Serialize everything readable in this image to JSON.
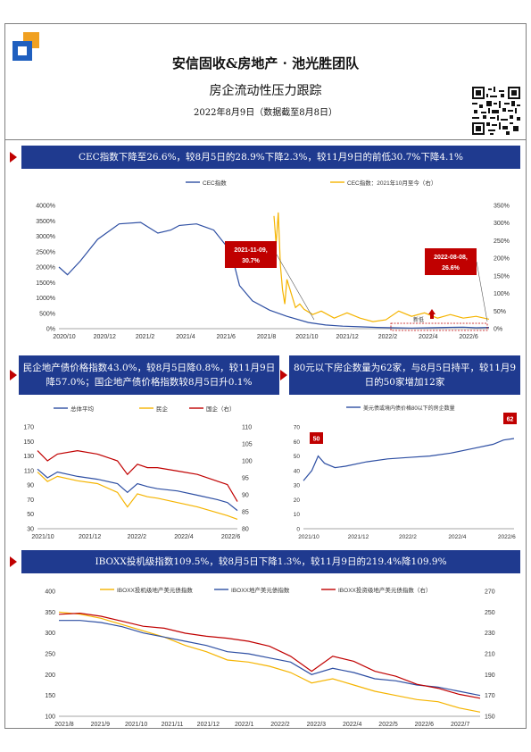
{
  "header": {
    "title": "安信固收&房地产 · 池光胜团队",
    "subtitle": "房企流动性压力跟踪",
    "date_line": "2022年8月9日（数据截至8月8日）"
  },
  "sections": [
    {
      "banner": "CEC指数下降至26.6%，较8月5日的28.9%下降2.3%，较11月9日的前低30.7%下降4.1%"
    },
    {
      "banner": "民企地产债价格指数43.0%，较8月5日降0.8%，较11月9日降57.0%；国企地产债价格指数较8月5日升0.1%"
    },
    {
      "banner": "80元以下房企数量为62家，与8月5日持平，较11月9日的50家增加12家"
    },
    {
      "banner": "IBOXX投机级指数109.5%，较8月5日下降1.3%，较11月9日的219.4%降109.9%"
    }
  ],
  "chart_data": [
    {
      "type": "line",
      "legend_position": "top",
      "x_ticks": [
        "2020/10",
        "2020/12",
        "2021/2",
        "2021/4",
        "2021/6",
        "2021/8",
        "2021/10",
        "2021/12",
        "2022/2",
        "2022/4",
        "2022/6"
      ],
      "y_ticks_left": [
        "0%",
        "500%",
        "1000%",
        "1500%",
        "2000%",
        "2500%",
        "3000%",
        "3500%",
        "4000%"
      ],
      "y_ticks_right": [
        "0%",
        "50%",
        "100%",
        "150%",
        "200%",
        "250%",
        "300%",
        "350%"
      ],
      "ylim_left": [
        0,
        4000
      ],
      "ylim_right": [
        0,
        350
      ],
      "series": [
        {
          "name": "CEC指数",
          "color": "#2e4fa3",
          "axis": "left",
          "x": [
            0,
            0.02,
            0.05,
            0.09,
            0.14,
            0.19,
            0.23,
            0.26,
            0.28,
            0.32,
            0.36,
            0.4,
            0.42,
            0.45,
            0.49,
            0.53,
            0.58,
            0.62,
            0.66,
            0.7,
            0.74,
            0.78,
            0.82,
            0.86,
            0.9,
            0.94,
            0.97,
            1.0
          ],
          "values": [
            2000,
            1750,
            2200,
            2900,
            3400,
            3450,
            3100,
            3200,
            3350,
            3400,
            3200,
            2500,
            1400,
            900,
            600,
            400,
            200,
            120,
            80,
            60,
            40,
            30,
            20,
            30,
            40,
            50,
            30,
            40
          ]
        },
        {
          "name": "CEC指数：2021年10月至今（右）",
          "color": "#f5b400",
          "axis": "right",
          "x": [
            0.5,
            0.505,
            0.51,
            0.515,
            0.52,
            0.525,
            0.53,
            0.54,
            0.55,
            0.56,
            0.57,
            0.59,
            0.61,
            0.64,
            0.67,
            0.7,
            0.73,
            0.76,
            0.79,
            0.82,
            0.85,
            0.88,
            0.91,
            0.94,
            0.97,
            1.0
          ],
          "values": [
            320,
            240,
            330,
            180,
            110,
            70,
            140,
            100,
            60,
            70,
            55,
            40,
            50,
            30,
            45,
            30,
            20,
            25,
            50,
            35,
            45,
            30,
            40,
            30,
            35,
            27
          ]
        }
      ],
      "annotations": [
        {
          "text": "2021-11-09,",
          "text2": "30.7%"
        },
        {
          "text": "2022-08-08,",
          "text2": "26.6%"
        },
        {
          "text": "新低"
        }
      ]
    },
    {
      "type": "line",
      "legend_position": "top",
      "x_ticks": [
        "2021/10",
        "2021/12",
        "2022/2",
        "2022/4",
        "2022/6"
      ],
      "y_ticks_left": [
        "30",
        "50",
        "70",
        "90",
        "110",
        "130",
        "150",
        "170"
      ],
      "y_ticks_right": [
        "80",
        "85",
        "90",
        "95",
        "100",
        "105",
        "110"
      ],
      "ylim_left": [
        30,
        170
      ],
      "ylim_right": [
        80,
        110
      ],
      "series": [
        {
          "name": "总体平均",
          "color": "#2e4fa3",
          "axis": "left",
          "x": [
            0,
            0.05,
            0.1,
            0.2,
            0.3,
            0.4,
            0.45,
            0.5,
            0.55,
            0.6,
            0.7,
            0.8,
            0.9,
            0.95,
            1.0
          ],
          "values": [
            112,
            100,
            108,
            102,
            98,
            92,
            80,
            92,
            88,
            85,
            82,
            76,
            70,
            66,
            55
          ]
        },
        {
          "name": "民企",
          "color": "#f5b400",
          "axis": "left",
          "x": [
            0,
            0.05,
            0.1,
            0.2,
            0.3,
            0.4,
            0.45,
            0.5,
            0.55,
            0.6,
            0.7,
            0.8,
            0.9,
            0.95,
            1.0
          ],
          "values": [
            108,
            95,
            102,
            96,
            92,
            80,
            60,
            78,
            74,
            72,
            66,
            60,
            52,
            48,
            43
          ]
        },
        {
          "name": "国企（右）",
          "color": "#c00000",
          "axis": "right",
          "x": [
            0,
            0.05,
            0.1,
            0.2,
            0.3,
            0.4,
            0.45,
            0.5,
            0.55,
            0.6,
            0.7,
            0.8,
            0.9,
            0.95,
            1.0
          ],
          "values": [
            103,
            100,
            102,
            103,
            102,
            100,
            96,
            99,
            98,
            98,
            97,
            96,
            94,
            93,
            88
          ]
        }
      ]
    },
    {
      "type": "line",
      "legend_position": "top",
      "x_ticks": [
        "2021/10",
        "2021/12",
        "2022/2",
        "2022/4",
        "2022/6"
      ],
      "y_ticks_left": [
        "0",
        "10",
        "20",
        "30",
        "40",
        "50",
        "60",
        "70"
      ],
      "ylim_left": [
        0,
        70
      ],
      "series": [
        {
          "name": "美元债或境内债价格80以下的房企数量",
          "color": "#2e4fa3",
          "axis": "left",
          "x": [
            0,
            0.04,
            0.07,
            0.1,
            0.15,
            0.2,
            0.3,
            0.4,
            0.5,
            0.6,
            0.7,
            0.8,
            0.9,
            0.95,
            1.0
          ],
          "values": [
            33,
            40,
            50,
            45,
            42,
            43,
            46,
            48,
            49,
            50,
            52,
            55,
            58,
            61,
            62
          ]
        }
      ],
      "annotations": [
        {
          "text": "50"
        },
        {
          "text": "62"
        }
      ]
    },
    {
      "type": "line",
      "legend_position": "top",
      "x_ticks": [
        "2021/8",
        "2021/9",
        "2021/10",
        "2021/11",
        "2021/12",
        "2022/1",
        "2022/2",
        "2022/3",
        "2022/4",
        "2022/5",
        "2022/6",
        "2022/7"
      ],
      "y_ticks_left": [
        "100",
        "150",
        "200",
        "250",
        "300",
        "350",
        "400"
      ],
      "y_ticks_right": [
        "150",
        "170",
        "190",
        "210",
        "230",
        "250",
        "270"
      ],
      "ylim_left": [
        100,
        400
      ],
      "ylim_right": [
        150,
        275
      ],
      "series": [
        {
          "name": "IBOXX投机级地产美元债指数",
          "color": "#f5b400",
          "axis": "left",
          "x": [
            0,
            0.05,
            0.1,
            0.15,
            0.2,
            0.25,
            0.3,
            0.35,
            0.4,
            0.45,
            0.5,
            0.55,
            0.6,
            0.65,
            0.7,
            0.75,
            0.8,
            0.85,
            0.9,
            0.95,
            1.0
          ],
          "values": [
            350,
            345,
            335,
            320,
            305,
            290,
            270,
            255,
            235,
            230,
            220,
            205,
            180,
            190,
            175,
            160,
            150,
            140,
            135,
            120,
            110
          ]
        },
        {
          "name": "IBOXX地产美元债指数",
          "color": "#2e4fa3",
          "axis": "left",
          "x": [
            0,
            0.05,
            0.1,
            0.15,
            0.2,
            0.25,
            0.3,
            0.35,
            0.4,
            0.45,
            0.5,
            0.55,
            0.6,
            0.65,
            0.7,
            0.75,
            0.8,
            0.85,
            0.9,
            0.95,
            1.0
          ],
          "values": [
            330,
            330,
            325,
            315,
            300,
            290,
            280,
            270,
            255,
            250,
            240,
            230,
            200,
            215,
            205,
            190,
            185,
            175,
            170,
            160,
            150
          ]
        },
        {
          "name": "IBOXX投资级地产美元债指数（右）",
          "color": "#c00000",
          "axis": "right",
          "x": [
            0,
            0.05,
            0.1,
            0.15,
            0.2,
            0.25,
            0.3,
            0.35,
            0.4,
            0.45,
            0.5,
            0.55,
            0.6,
            0.65,
            0.7,
            0.75,
            0.8,
            0.85,
            0.9,
            0.95,
            1.0
          ],
          "values": [
            252,
            253,
            250,
            245,
            240,
            238,
            233,
            230,
            228,
            225,
            220,
            210,
            195,
            210,
            205,
            195,
            190,
            182,
            178,
            172,
            168
          ]
        }
      ]
    }
  ]
}
